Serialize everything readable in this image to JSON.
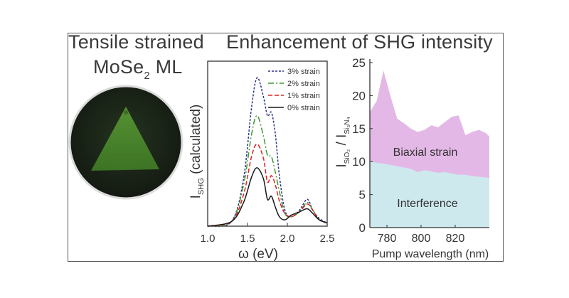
{
  "titles": {
    "left_line1": "Tensile strained",
    "left_line2_main": "MoSe",
    "left_line2_sub": "2",
    "left_line2_tail": " ML",
    "right": "Enhancement of SHG intensity"
  },
  "micrograph": {
    "description_colors": {
      "field": "#1e2a1a",
      "triangle": "#4f8a2e",
      "border": "#dcdcdc"
    }
  },
  "chart_data": [
    {
      "type": "line",
      "xlabel": "ω (eV)",
      "ylabel_main": "I",
      "ylabel_sub": "SHG",
      "ylabel_tail": "(calculated)",
      "xlim": [
        1.0,
        2.5
      ],
      "xticks": [
        "1.0",
        "1.5",
        "2.0",
        "2.5"
      ],
      "ylim": [
        0,
        1.0
      ],
      "legend_position": "top-right",
      "series": [
        {
          "name": "3% strain",
          "color": "#2b3590",
          "dash": "3,2",
          "x": [
            1.0,
            1.3,
            1.45,
            1.55,
            1.62,
            1.7,
            1.75,
            1.8,
            1.85,
            1.9,
            1.97,
            2.05,
            2.15,
            2.25,
            2.32,
            2.4,
            2.5
          ],
          "y": [
            0.0,
            0.03,
            0.3,
            0.75,
            0.94,
            0.82,
            0.7,
            0.72,
            0.58,
            0.32,
            0.1,
            0.06,
            0.1,
            0.17,
            0.1,
            0.05,
            0.02
          ]
        },
        {
          "name": "2% strain",
          "color": "#3e9a2f",
          "dash": "8,3,2,3",
          "x": [
            1.0,
            1.3,
            1.45,
            1.55,
            1.62,
            1.7,
            1.75,
            1.8,
            1.85,
            1.9,
            1.97,
            2.05,
            2.15,
            2.25,
            2.32,
            2.4,
            2.5
          ],
          "y": [
            0.0,
            0.03,
            0.26,
            0.58,
            0.7,
            0.57,
            0.45,
            0.44,
            0.34,
            0.22,
            0.08,
            0.06,
            0.09,
            0.15,
            0.1,
            0.04,
            0.02
          ]
        },
        {
          "name": "1% strain",
          "color": "#e02020",
          "dash": "6,3",
          "x": [
            1.0,
            1.3,
            1.45,
            1.55,
            1.62,
            1.7,
            1.75,
            1.8,
            1.85,
            1.9,
            1.97,
            2.05,
            2.15,
            2.25,
            2.32,
            2.4,
            2.5
          ],
          "y": [
            0.0,
            0.03,
            0.2,
            0.44,
            0.52,
            0.43,
            0.28,
            0.32,
            0.26,
            0.16,
            0.08,
            0.06,
            0.09,
            0.14,
            0.1,
            0.04,
            0.02
          ]
        },
        {
          "name": "0% strain",
          "color": "#1a1a1a",
          "dash": "",
          "x": [
            1.0,
            1.3,
            1.45,
            1.55,
            1.62,
            1.7,
            1.75,
            1.8,
            1.85,
            1.9,
            1.97,
            2.05,
            2.15,
            2.25,
            2.32,
            2.4,
            2.5
          ],
          "y": [
            0.0,
            0.03,
            0.15,
            0.31,
            0.37,
            0.3,
            0.17,
            0.19,
            0.12,
            0.06,
            0.04,
            0.07,
            0.09,
            0.11,
            0.08,
            0.04,
            0.02
          ]
        }
      ]
    },
    {
      "type": "area",
      "xlabel": "Pump wavelength (nm)",
      "ylabel_main": "I",
      "ylabel_sub1": "SiO₂",
      "ylabel_mid": " / I",
      "ylabel_sub2": "Si₃N₄",
      "xlim": [
        770,
        840
      ],
      "xticks": [
        780,
        800,
        820
      ],
      "ylim": [
        0,
        25
      ],
      "yticks": [
        0,
        5,
        10,
        15,
        20,
        25
      ],
      "layers": [
        {
          "name": "Interference",
          "color": "#cde9ee",
          "x": [
            770,
            774,
            778,
            782,
            786,
            790,
            794,
            798,
            802,
            806,
            810,
            814,
            818,
            822,
            826,
            830,
            834,
            838,
            840
          ],
          "y": [
            10.0,
            9.8,
            9.7,
            9.5,
            9.3,
            9.1,
            8.9,
            8.4,
            8.7,
            8.5,
            8.3,
            8.4,
            8.2,
            8.0,
            8.0,
            7.8,
            7.7,
            7.6,
            7.5
          ]
        },
        {
          "name": "Biaxial strain",
          "color": "#e4b8e6",
          "x": [
            770,
            774,
            778,
            782,
            786,
            790,
            794,
            798,
            802,
            806,
            810,
            814,
            818,
            822,
            826,
            830,
            834,
            838,
            840
          ],
          "y": [
            17.5,
            19.2,
            23.8,
            20.0,
            16.5,
            15.8,
            15.0,
            14.5,
            14.8,
            15.5,
            15.2,
            16.0,
            16.8,
            17.0,
            14.0,
            14.5,
            14.8,
            14.3,
            13.8
          ]
        }
      ]
    }
  ]
}
